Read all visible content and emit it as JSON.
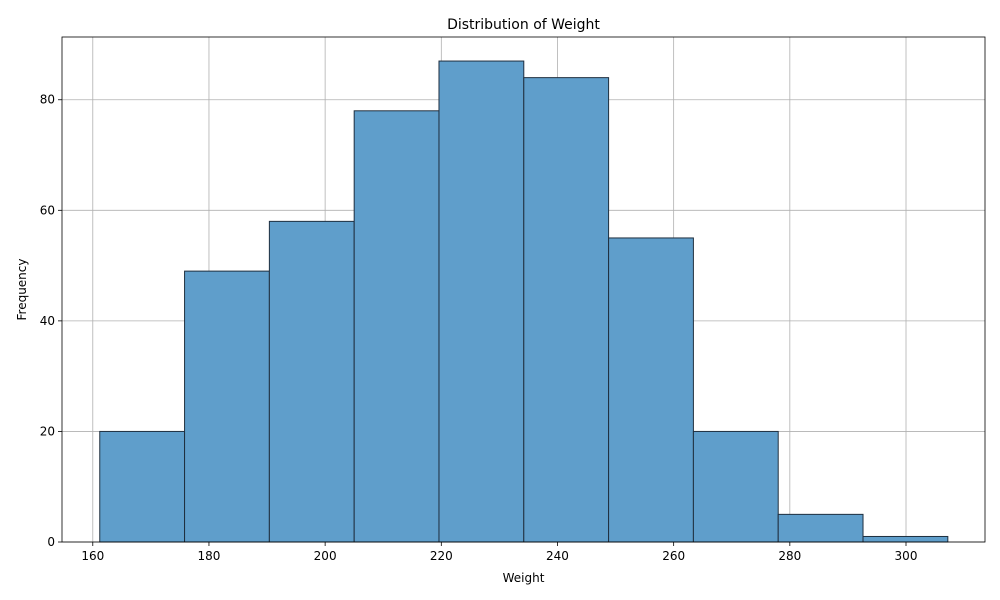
{
  "chart_data": {
    "type": "bar",
    "title": "Distribution of Weight",
    "xlabel": "Weight",
    "ylabel": "Frequency",
    "xlim": [
      154.7,
      313.6
    ],
    "ylim": [
      0,
      91.35
    ],
    "xticks": [
      160,
      180,
      200,
      220,
      240,
      260,
      280,
      300
    ],
    "yticks": [
      0,
      20,
      40,
      60,
      80
    ],
    "grid": true,
    "bar_color": "#5f9ecb",
    "edge_color": "#1f2f3f",
    "bins": [
      {
        "x0": 161.2,
        "x1": 175.8,
        "count": 20
      },
      {
        "x0": 175.8,
        "x1": 190.4,
        "count": 49
      },
      {
        "x0": 190.4,
        "x1": 205.0,
        "count": 58
      },
      {
        "x0": 205.0,
        "x1": 219.6,
        "count": 78
      },
      {
        "x0": 219.6,
        "x1": 234.2,
        "count": 87
      },
      {
        "x0": 234.2,
        "x1": 248.8,
        "count": 84
      },
      {
        "x0": 248.8,
        "x1": 263.4,
        "count": 55
      },
      {
        "x0": 263.4,
        "x1": 278.0,
        "count": 20
      },
      {
        "x0": 278.0,
        "x1": 292.6,
        "count": 5
      },
      {
        "x0": 292.6,
        "x1": 307.2,
        "count": 1
      }
    ]
  }
}
